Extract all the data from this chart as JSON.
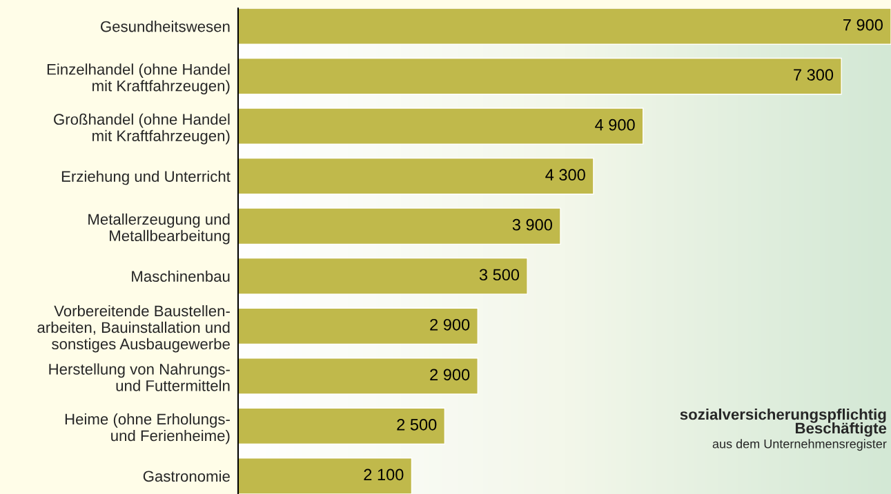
{
  "chart_data": {
    "type": "bar",
    "orientation": "horizontal",
    "categories": [
      "Gesundheitswesen",
      "Einzelhandel (ohne Handel\nmit Kraftfahrzeugen)",
      "Großhandel (ohne Handel\nmit Kraftfahrzeugen)",
      "Erziehung und Unterricht",
      "Metallerzeugung und\nMetallbearbeitung",
      "Maschinenbau",
      "Vorbereitende Baustellen-\narbeiten, Bauinstallation und\nsonstiges Ausbaugewerbe",
      "Herstellung von Nahrungs-\nund Futtermitteln",
      "Heime (ohne Erholungs-\nund Ferienheime)",
      "Gastronomie"
    ],
    "values": [
      7900,
      7300,
      4900,
      4300,
      3900,
      3500,
      2900,
      2900,
      2500,
      2100
    ],
    "value_labels": [
      "7 900",
      "7 300",
      "4 900",
      "4 300",
      "3 900",
      "3 500",
      "2 900",
      "2 900",
      "2 500",
      "2 100"
    ],
    "color": "#c0b94b",
    "annotations": [
      "sozialversicherungspflichtig\nBeschäftigte",
      "aus dem Unternehmensregister"
    ]
  }
}
